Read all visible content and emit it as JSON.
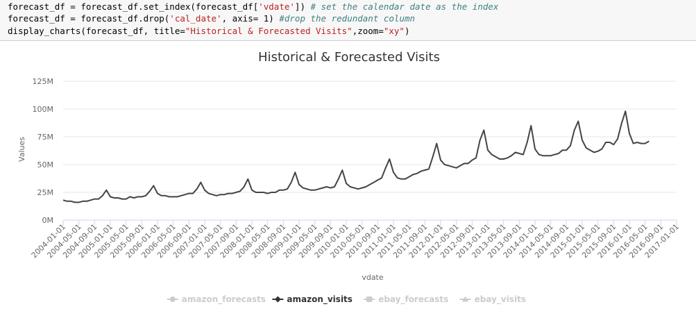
{
  "code": {
    "line1": {
      "a": "forecast_df = forecast_df.set_index(forecast_df[",
      "s1": "'vdate'",
      "b": "]) ",
      "c1": "# set the calendar date as the index"
    },
    "line2": {
      "a": "forecast_df = forecast_df.drop(",
      "s1": "'cal_date'",
      "b": ", axis= 1) ",
      "c1": "#drop the redundant column"
    },
    "line3": {
      "a": "display_charts(forecast_df, title=",
      "s1": "\"Historical & Forecasted Visits\"",
      "b": ",zoom=",
      "s2": "\"xy\"",
      "c": ")"
    }
  },
  "chart_data": {
    "type": "line",
    "title": "Historical & Forecasted Visits",
    "xlabel": "vdate",
    "ylabel": "Values",
    "ylim": [
      0,
      125000000
    ],
    "y_ticks": [
      "0M",
      "25M",
      "50M",
      "75M",
      "100M",
      "125M"
    ],
    "x_ticks": [
      "2004-01-01",
      "2004-05-01",
      "2004-09-01",
      "2005-01-01",
      "2005-05-01",
      "2005-09-01",
      "2006-01-01",
      "2006-05-01",
      "2006-09-01",
      "2007-01-01",
      "2007-05-01",
      "2007-09-01",
      "2008-01-01",
      "2008-05-01",
      "2008-09-01",
      "2009-01-01",
      "2009-05-01",
      "2009-09-01",
      "2010-01-01",
      "2010-05-01",
      "2010-09-01",
      "2011-01-01",
      "2011-05-01",
      "2011-09-01",
      "2012-01-01",
      "2012-05-01",
      "2012-09-01",
      "2013-01-01",
      "2013-05-01",
      "2013-09-01",
      "2014-01-01",
      "2014-05-01",
      "2014-09-01",
      "2015-01-01",
      "2015-05-01",
      "2015-09-01",
      "2016-01-01",
      "2016-05-01",
      "2016-09-01",
      "2017-01-01"
    ],
    "x_start": "2004-01",
    "x_end": "2017-01",
    "legend_position": "bottom",
    "grid": "horizontal",
    "series": [
      {
        "name": "amazon_forecasts",
        "active": false,
        "marker": "circle",
        "values": []
      },
      {
        "name": "amazon_visits",
        "active": true,
        "marker": "diamond",
        "color": "#434348",
        "x": [
          "2004-01",
          "2004-02",
          "2004-03",
          "2004-04",
          "2004-05",
          "2004-06",
          "2004-07",
          "2004-08",
          "2004-09",
          "2004-10",
          "2004-11",
          "2004-12",
          "2005-01",
          "2005-02",
          "2005-03",
          "2005-04",
          "2005-05",
          "2005-06",
          "2005-07",
          "2005-08",
          "2005-09",
          "2005-10",
          "2005-11",
          "2005-12",
          "2006-01",
          "2006-02",
          "2006-03",
          "2006-04",
          "2006-05",
          "2006-06",
          "2006-07",
          "2006-08",
          "2006-09",
          "2006-10",
          "2006-11",
          "2006-12",
          "2007-01",
          "2007-02",
          "2007-03",
          "2007-04",
          "2007-05",
          "2007-06",
          "2007-07",
          "2007-08",
          "2007-09",
          "2007-10",
          "2007-11",
          "2007-12",
          "2008-01",
          "2008-02",
          "2008-03",
          "2008-04",
          "2008-05",
          "2008-06",
          "2008-07",
          "2008-08",
          "2008-09",
          "2008-10",
          "2008-11",
          "2008-12",
          "2009-01",
          "2009-02",
          "2009-03",
          "2009-04",
          "2009-05",
          "2009-06",
          "2009-07",
          "2009-08",
          "2009-09",
          "2009-10",
          "2009-11",
          "2009-12",
          "2010-01",
          "2010-02",
          "2010-03",
          "2010-04",
          "2010-05",
          "2010-06",
          "2010-07",
          "2010-08",
          "2010-09",
          "2010-10",
          "2010-11",
          "2010-12",
          "2011-01",
          "2011-02",
          "2011-03",
          "2011-04",
          "2011-05",
          "2011-06",
          "2011-07",
          "2011-08",
          "2011-09",
          "2011-10",
          "2011-11",
          "2011-12",
          "2012-01",
          "2012-02",
          "2012-03",
          "2012-04",
          "2012-05",
          "2012-06",
          "2012-07",
          "2012-08",
          "2012-09",
          "2012-10",
          "2012-11",
          "2012-12",
          "2013-01",
          "2013-02",
          "2013-03",
          "2013-04",
          "2013-05",
          "2013-06",
          "2013-07",
          "2013-08",
          "2013-09",
          "2013-10",
          "2013-11",
          "2013-12",
          "2014-01",
          "2014-02",
          "2014-03",
          "2014-04",
          "2014-05",
          "2014-06",
          "2014-07",
          "2014-08",
          "2014-09",
          "2014-10",
          "2014-11",
          "2014-12",
          "2015-01",
          "2015-02",
          "2015-03",
          "2015-04",
          "2015-05",
          "2015-06",
          "2015-07",
          "2015-08",
          "2015-09",
          "2015-10",
          "2015-11",
          "2015-12",
          "2016-01",
          "2016-02",
          "2016-03",
          "2016-04",
          "2016-05",
          "2016-06"
        ],
        "values": [
          18,
          17,
          17,
          16,
          16,
          17,
          17,
          18,
          19,
          19,
          22,
          27,
          21,
          20,
          20,
          19,
          19,
          21,
          20,
          21,
          21,
          22,
          26,
          31,
          24,
          22,
          22,
          21,
          21,
          21,
          22,
          23,
          24,
          24,
          28,
          34,
          27,
          24,
          23,
          22,
          23,
          23,
          24,
          24,
          25,
          26,
          30,
          37,
          27,
          25,
          25,
          25,
          24,
          25,
          25,
          27,
          27,
          28,
          34,
          43,
          32,
          29,
          28,
          27,
          27,
          28,
          29,
          30,
          29,
          30,
          37,
          45,
          33,
          30,
          29,
          28,
          29,
          30,
          32,
          34,
          36,
          38,
          47,
          55,
          43,
          38,
          37,
          37,
          39,
          41,
          42,
          44,
          45,
          46,
          57,
          69,
          54,
          50,
          49,
          48,
          47,
          49,
          51,
          51,
          54,
          56,
          72,
          81,
          63,
          59,
          57,
          55,
          55,
          56,
          58,
          61,
          60,
          59,
          70,
          85,
          64,
          59,
          58,
          58,
          58,
          59,
          60,
          63,
          63,
          67,
          81,
          89,
          72,
          65,
          63,
          61,
          62,
          64,
          70,
          70,
          68,
          73,
          87,
          98,
          78,
          69,
          70,
          69,
          69,
          71
        ]
      },
      {
        "name": "ebay_forecasts",
        "active": false,
        "marker": "square",
        "values": []
      },
      {
        "name": "ebay_visits",
        "active": false,
        "marker": "triangle",
        "values": []
      }
    ]
  }
}
